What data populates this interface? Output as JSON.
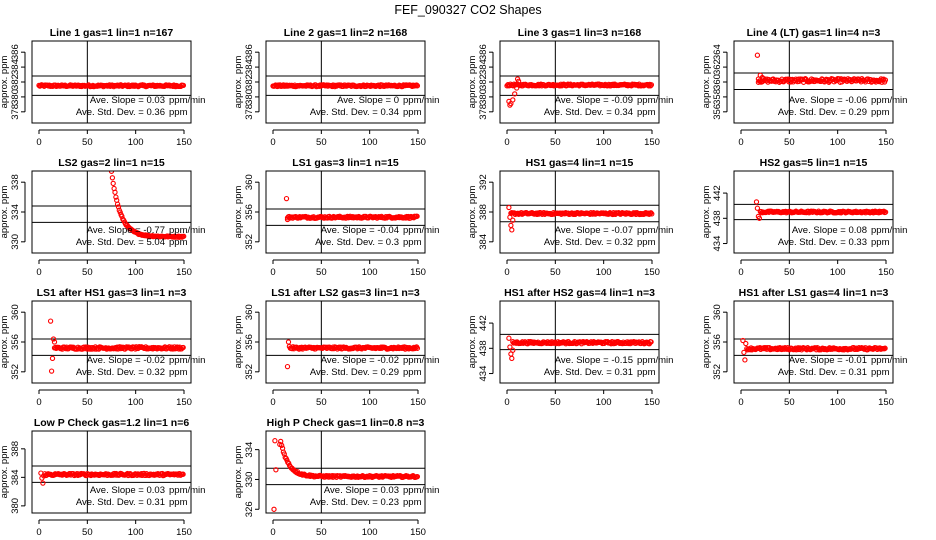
{
  "main_title": "FEF_090327  CO2 Shapes",
  "colors": {
    "points": "#ff0000",
    "axes": "#000000"
  },
  "chart_data": [
    {
      "type": "scatter",
      "title": "Line 1 gas=1 lin=1 n=167",
      "ylabel": "approx. ppm",
      "xlim": [
        0,
        150
      ],
      "ylim": [
        376.5,
        387.5
      ],
      "xticks": [
        0,
        50,
        100,
        150
      ],
      "yticks": [
        378,
        380,
        382,
        384,
        386
      ],
      "hlines": [
        382.8,
        380.2
      ],
      "vline": 50,
      "slope_label": "Ave. Slope =",
      "slope": "0.03",
      "slope_unit": "ppm/min",
      "sd_label": "Ave. Std. Dev. =",
      "sd": "0.36",
      "sd_unit": "ppm",
      "shape": "flat",
      "base": 381.5,
      "noise": 0.12,
      "x_start": 0,
      "x_end": 150
    },
    {
      "type": "scatter",
      "title": "Line 2 gas=1 lin=2 n=168",
      "ylabel": "approx. ppm",
      "xlim": [
        0,
        150
      ],
      "ylim": [
        376.5,
        387.5
      ],
      "xticks": [
        0,
        50,
        100,
        150
      ],
      "yticks": [
        378,
        380,
        382,
        384,
        386
      ],
      "hlines": [
        382.8,
        380.2
      ],
      "vline": 50,
      "slope_label": "Ave. Slope =",
      "slope": "0",
      "slope_unit": "ppm/min",
      "sd_label": "Ave. Std. Dev. =",
      "sd": "0.34",
      "sd_unit": "ppm",
      "shape": "flat",
      "base": 381.5,
      "noise": 0.12,
      "x_start": 0,
      "x_end": 150
    },
    {
      "type": "scatter",
      "title": "Line 3 gas=1 lin=3 n=168",
      "ylabel": "approx. ppm",
      "xlim": [
        0,
        150
      ],
      "ylim": [
        376.5,
        387.5
      ],
      "xticks": [
        0,
        50,
        100,
        150
      ],
      "yticks": [
        378,
        380,
        382,
        384,
        386
      ],
      "hlines": [
        382.8,
        380.2
      ],
      "vline": 50,
      "slope_label": "Ave. Slope =",
      "slope": "-0.09",
      "slope_unit": "ppm/min",
      "sd_label": "Ave. Std. Dev. =",
      "sd": "0.34",
      "sd_unit": "ppm",
      "shape": "dip",
      "base": 381.6,
      "noise": 0.12,
      "x_start": 0,
      "x_end": 150,
      "early": [
        [
          2,
          379.4
        ],
        [
          3,
          378.9
        ],
        [
          4,
          379.1
        ],
        [
          6,
          379.6
        ],
        [
          8,
          380.4
        ],
        [
          10,
          381.2
        ],
        [
          11,
          382.4
        ],
        [
          12,
          382.1
        ]
      ]
    },
    {
      "type": "scatter",
      "title": "Line 4 (LT) gas=1 lin=4 n=3",
      "ylabel": "approx. ppm",
      "xlim": [
        0,
        150
      ],
      "ylim": [
        354.5,
        365.5
      ],
      "xticks": [
        0,
        50,
        100,
        150
      ],
      "yticks": [
        356,
        358,
        360,
        362,
        364
      ],
      "hlines": [
        361.2,
        359.0
      ],
      "vline": 50,
      "slope_label": "Ave. Slope =",
      "slope": "-0.06",
      "slope_unit": "ppm/min",
      "sd_label": "Ave. Std. Dev. =",
      "sd": "0.29",
      "sd_unit": "ppm",
      "shape": "flat",
      "base": 360.2,
      "noise": 0.25,
      "x_start": 18,
      "x_end": 150,
      "early": [
        [
          17,
          363.6
        ],
        [
          18,
          360.4
        ],
        [
          20,
          360.9
        ],
        [
          22,
          360.6
        ]
      ]
    },
    {
      "type": "scatter",
      "title": "LS2 gas=2 lin=1 n=15",
      "ylabel": "approx. ppm",
      "xlim": [
        0,
        150
      ],
      "ylim": [
        328.5,
        339.5
      ],
      "xticks": [
        0,
        50,
        100,
        150
      ],
      "yticks": [
        330,
        334,
        338
      ],
      "hlines": [
        334.8,
        332.6
      ],
      "vline": 50,
      "slope_label": "Ave. Slope =",
      "slope": "-0.77",
      "slope_unit": "ppm/min",
      "sd_label": "Ave. Std. Dev. =",
      "sd": "5.04",
      "sd_unit": "ppm",
      "shape": "decay",
      "base": 330.7,
      "amp": 65,
      "tau": 9,
      "noise": 0.08,
      "x_start": 57,
      "x_end": 150
    },
    {
      "type": "scatter",
      "title": "LS1 gas=3 lin=1 n=15",
      "ylabel": "approx. ppm",
      "xlim": [
        0,
        150
      ],
      "ylim": [
        350.5,
        361.5
      ],
      "xticks": [
        0,
        50,
        100,
        150
      ],
      "yticks": [
        352,
        356,
        360
      ],
      "hlines": [
        356.4,
        354.2
      ],
      "vline": 50,
      "slope_label": "Ave. Slope =",
      "slope": "-0.04",
      "slope_unit": "ppm/min",
      "sd_label": "Ave. Std. Dev. =",
      "sd": "0.3",
      "sd_unit": "ppm",
      "shape": "flat",
      "base": 355.3,
      "noise": 0.13,
      "x_start": 15,
      "x_end": 150,
      "early": [
        [
          14,
          357.8
        ],
        [
          15,
          355.0
        ]
      ]
    },
    {
      "type": "scatter",
      "title": "HS1 gas=4 lin=1 n=15",
      "ylabel": "approx. ppm",
      "xlim": [
        0,
        150
      ],
      "ylim": [
        382.5,
        393.5
      ],
      "xticks": [
        0,
        50,
        100,
        150
      ],
      "yticks": [
        384,
        388,
        392
      ],
      "hlines": [
        388.9,
        386.7
      ],
      "vline": 50,
      "slope_label": "Ave. Slope =",
      "slope": "-0.07",
      "slope_unit": "ppm/min",
      "sd_label": "Ave. Std. Dev. =",
      "sd": "0.32",
      "sd_unit": "ppm",
      "shape": "flat",
      "base": 387.8,
      "noise": 0.13,
      "x_start": 4,
      "x_end": 150,
      "early": [
        [
          2,
          388.6
        ],
        [
          3,
          387.3
        ],
        [
          4,
          386.2
        ],
        [
          5,
          385.6
        ],
        [
          6,
          386.9
        ]
      ]
    },
    {
      "type": "scatter",
      "title": "HS2 gas=5 lin=1 n=15",
      "ylabel": "approx. ppm",
      "xlim": [
        0,
        150
      ],
      "ylim": [
        432.5,
        445.5
      ],
      "xticks": [
        0,
        50,
        100,
        150
      ],
      "yticks": [
        434,
        438,
        442
      ],
      "hlines": [
        440.2,
        437.8
      ],
      "vline": 50,
      "slope_label": "Ave. Slope =",
      "slope": "0.08",
      "slope_unit": "ppm/min",
      "sd_label": "Ave. Std. Dev. =",
      "sd": "0.33",
      "sd_unit": "ppm",
      "shape": "flat",
      "base": 439.0,
      "noise": 0.13,
      "x_start": 20,
      "x_end": 150,
      "early": [
        [
          16,
          440.6
        ],
        [
          17,
          439.6
        ],
        [
          18,
          438.3
        ],
        [
          19,
          438.0
        ]
      ]
    },
    {
      "type": "scatter",
      "title": "LS1 after HS1 gas=3 lin=1 n=3",
      "ylabel": "approx. ppm",
      "xlim": [
        0,
        150
      ],
      "ylim": [
        350.5,
        361.5
      ],
      "xticks": [
        0,
        50,
        100,
        150
      ],
      "yticks": [
        352,
        356,
        360
      ],
      "hlines": [
        356.4,
        354.2
      ],
      "vline": 50,
      "slope_label": "Ave. Slope =",
      "slope": "-0.02",
      "slope_unit": "ppm/min",
      "sd_label": "Ave. Std. Dev. =",
      "sd": "0.32",
      "sd_unit": "ppm",
      "shape": "flat",
      "base": 355.2,
      "noise": 0.16,
      "x_start": 16,
      "x_end": 150,
      "early": [
        [
          12,
          358.8
        ],
        [
          13,
          352.1
        ],
        [
          14,
          353.8
        ],
        [
          15,
          356.4
        ],
        [
          16,
          356.0
        ]
      ]
    },
    {
      "type": "scatter",
      "title": "LS1 after LS2 gas=3 lin=1 n=3",
      "ylabel": "approx. ppm",
      "xlim": [
        0,
        150
      ],
      "ylim": [
        350.5,
        361.5
      ],
      "xticks": [
        0,
        50,
        100,
        150
      ],
      "yticks": [
        352,
        356,
        360
      ],
      "hlines": [
        356.4,
        354.2
      ],
      "vline": 50,
      "slope_label": "Ave. Slope =",
      "slope": "-0.02",
      "slope_unit": "ppm/min",
      "sd_label": "Ave. Std. Dev. =",
      "sd": "0.29",
      "sd_unit": "ppm",
      "shape": "flat",
      "base": 355.2,
      "noise": 0.15,
      "x_start": 18,
      "x_end": 150,
      "early": [
        [
          15,
          352.7
        ],
        [
          16,
          356.0
        ],
        [
          17,
          355.4
        ]
      ]
    },
    {
      "type": "scatter",
      "title": "HS1 after HS2 gas=4 lin=1 n=3",
      "ylabel": "approx. ppm",
      "xlim": [
        0,
        150
      ],
      "ylim": [
        432.5,
        445.5
      ],
      "xticks": [
        0,
        50,
        100,
        150
      ],
      "yticks": [
        434,
        438,
        442
      ],
      "hlines": [
        440.2,
        437.8
      ],
      "vline": 50,
      "slope_label": "Ave. Slope =",
      "slope": "-0.15",
      "slope_unit": "ppm/min",
      "sd_label": "Ave. Std. Dev. =",
      "sd": "0.31",
      "sd_unit": "ppm",
      "shape": "flat",
      "base": 438.9,
      "noise": 0.17,
      "x_start": 6,
      "x_end": 150,
      "early": [
        [
          2,
          439.6
        ],
        [
          3,
          438.2
        ],
        [
          4,
          437.1
        ],
        [
          5,
          436.4
        ],
        [
          6,
          437.7
        ]
      ]
    },
    {
      "type": "scatter",
      "title": "HS1 after LS1 gas=4 lin=1 n=3",
      "ylabel": "approx. ppm",
      "xlim": [
        0,
        150
      ],
      "ylim": [
        350.5,
        361.5
      ],
      "xticks": [
        0,
        50,
        100,
        150
      ],
      "yticks": [
        352,
        356,
        360
      ],
      "hlines": [
        356.4,
        354.2
      ],
      "vline": 50,
      "slope_label": "Ave. Slope =",
      "slope": "-0.01",
      "slope_unit": "ppm/min",
      "sd_label": "Ave. Std. Dev. =",
      "sd": "0.31",
      "sd_unit": "ppm",
      "shape": "flat",
      "base": 355.1,
      "noise": 0.15,
      "x_start": 6,
      "x_end": 150,
      "early": [
        [
          2,
          356.2
        ],
        [
          3,
          354.6
        ],
        [
          4,
          353.6
        ],
        [
          5,
          355.8
        ]
      ]
    },
    {
      "type": "scatter",
      "title": "Low P Check gas=1.2 lin=1 n=6",
      "ylabel": "approx. ppm",
      "xlim": [
        0,
        150
      ],
      "ylim": [
        379.0,
        390.5
      ],
      "xticks": [
        0,
        50,
        100,
        150
      ],
      "yticks": [
        380,
        384,
        388
      ],
      "hlines": [
        385.6,
        383.3
      ],
      "vline": 50,
      "slope_label": "Ave. Slope =",
      "slope": "0.03",
      "slope_unit": "ppm/min",
      "sd_label": "Ave. Std. Dev. =",
      "sd": "0.31",
      "sd_unit": "ppm",
      "shape": "flat",
      "base": 384.4,
      "noise": 0.15,
      "x_start": 6,
      "x_end": 150,
      "early": [
        [
          2,
          384.6
        ],
        [
          3,
          383.9
        ],
        [
          4,
          383.2
        ],
        [
          5,
          384.2
        ]
      ]
    },
    {
      "type": "scatter",
      "title": "High P Check gas=1 lin=0.8 n=3",
      "ylabel": "approx. ppm",
      "xlim": [
        0,
        150
      ],
      "ylim": [
        325.5,
        336.5
      ],
      "xticks": [
        0,
        50,
        100,
        150
      ],
      "yticks": [
        326,
        330,
        334
      ],
      "hlines": [
        331.5,
        329.3
      ],
      "vline": 50,
      "slope_label": "Ave. Slope =",
      "slope": "0.03",
      "slope_unit": "ppm/min",
      "sd_label": "Ave. Std. Dev. =",
      "sd": "0.23",
      "sd_unit": "ppm",
      "shape": "decay",
      "base": 330.4,
      "amp": 4.2,
      "tau": 8,
      "noise": 0.12,
      "x_start": 9,
      "x_end": 150,
      "early": [
        [
          1,
          326.0
        ],
        [
          2,
          335.2
        ],
        [
          3,
          331.3
        ],
        [
          7,
          334.7
        ],
        [
          8,
          335.1
        ]
      ]
    }
  ]
}
